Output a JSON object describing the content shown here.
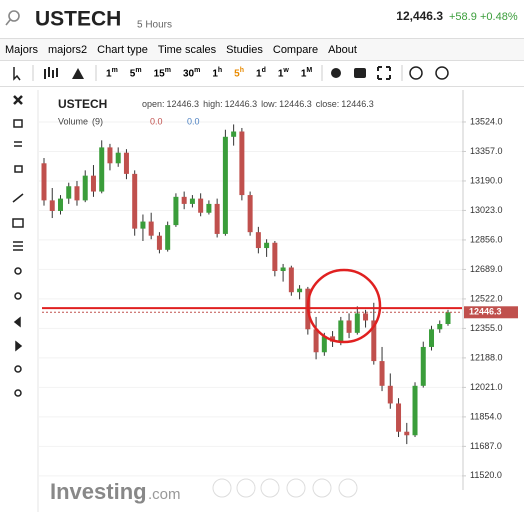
{
  "header": {
    "title": "USTECH",
    "interval": "5 Hours",
    "price": "12,446.3",
    "change": "+58.9",
    "change_pct": "+0.48%"
  },
  "menu": [
    "Majors",
    "majors2",
    "Chart type",
    "Time scales",
    "Studies",
    "Compare",
    "About"
  ],
  "timescales": [
    {
      "n": "1",
      "u": "m"
    },
    {
      "n": "5",
      "u": "m"
    },
    {
      "n": "15",
      "u": "m"
    },
    {
      "n": "30",
      "u": "m"
    },
    {
      "n": "1",
      "u": "h"
    },
    {
      "n": "5",
      "u": "h"
    },
    {
      "n": "1",
      "u": "d"
    },
    {
      "n": "1",
      "u": "w"
    },
    {
      "n": "1",
      "u": "M"
    }
  ],
  "chart": {
    "type": "candlestick",
    "symbol": "USTECH",
    "legend": [
      {
        "label": "open:",
        "value": "12446.3"
      },
      {
        "label": "high:",
        "value": "12446.3"
      },
      {
        "label": "low:",
        "value": "12446.3"
      },
      {
        "label": "close:",
        "value": "12446.3"
      }
    ],
    "volume": {
      "label": "Volume",
      "period": "(9)",
      "values": [
        "0.0",
        "0.0"
      ]
    },
    "up_color": "#3a9d3a",
    "down_color": "#c0504d",
    "ylim": [
      11440,
      13705
    ],
    "yticks": [
      {
        "value": 13524,
        "label": "13524.0"
      },
      {
        "value": 13357,
        "label": "13357.0"
      },
      {
        "value": 13190,
        "label": "13190.0"
      },
      {
        "value": 13023,
        "label": "13023.0"
      },
      {
        "value": 12856,
        "label": "12856.0"
      },
      {
        "value": 12689,
        "label": "12689.0"
      },
      {
        "value": 12522,
        "label": "12522.0"
      },
      {
        "value": 12355,
        "label": "12355.0"
      },
      {
        "value": 12188,
        "label": "12188.0"
      },
      {
        "value": 12021,
        "label": "12021.0"
      },
      {
        "value": 11854,
        "label": "11854.0"
      },
      {
        "value": 11687,
        "label": "11687.0"
      },
      {
        "value": 11520,
        "label": "11520.0"
      }
    ],
    "horizontal_line": 12470,
    "last_price": 12446.3,
    "open": [
      13290,
      13080,
      13020,
      13090,
      13160,
      13080,
      13220,
      13130,
      13380,
      13290,
      13350,
      13230,
      12920,
      12960,
      12880,
      12800,
      12940,
      13100,
      13060,
      13090,
      13010,
      13060,
      12890,
      13440,
      13470,
      13110,
      12900,
      12810,
      12840,
      12680,
      12700,
      12560,
      12580,
      12350,
      12220,
      12310,
      12280,
      12400,
      12330,
      12440,
      12400,
      12170,
      12030,
      11930,
      11770,
      11750,
      12030,
      12250,
      12350,
      12380
    ],
    "high": [
      13320,
      13150,
      13110,
      13180,
      13190,
      13250,
      13280,
      13420,
      13400,
      13380,
      13370,
      13250,
      13000,
      13010,
      12900,
      12960,
      13120,
      13130,
      13110,
      13120,
      13080,
      13090,
      13480,
      13510,
      13490,
      13130,
      12930,
      12860,
      12850,
      12720,
      12710,
      12600,
      12590,
      12420,
      12330,
      12340,
      12420,
      12440,
      12480,
      12460,
      12500,
      12250,
      12100,
      11960,
      11820,
      12050,
      12280,
      12370,
      12400,
      12460
    ],
    "low": [
      13050,
      12980,
      13000,
      13060,
      13050,
      13070,
      13100,
      13120,
      13250,
      13270,
      13200,
      12880,
      12850,
      12860,
      12780,
      12790,
      12930,
      13030,
      13040,
      12990,
      13000,
      12870,
      12880,
      13390,
      13080,
      12880,
      12780,
      12760,
      12650,
      12620,
      12540,
      12520,
      12320,
      12180,
      12200,
      12250,
      12260,
      12300,
      12320,
      12360,
      12150,
      12000,
      11900,
      11740,
      11700,
      11740,
      12020,
      12230,
      12330,
      12370
    ],
    "close": [
      13080,
      13020,
      13090,
      13160,
      13080,
      13220,
      13130,
      13380,
      13290,
      13350,
      13230,
      12920,
      12960,
      12880,
      12800,
      12940,
      13100,
      13060,
      13090,
      13010,
      13060,
      12890,
      13440,
      13470,
      13110,
      12900,
      12810,
      12840,
      12680,
      12700,
      12560,
      12580,
      12350,
      12220,
      12310,
      12280,
      12400,
      12330,
      12440,
      12400,
      12170,
      12030,
      11930,
      11770,
      11750,
      12030,
      12250,
      12350,
      12380,
      12446.3
    ]
  },
  "watermark": {
    "brand": "Investing",
    "suffix": ".com"
  }
}
